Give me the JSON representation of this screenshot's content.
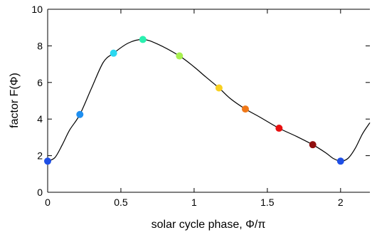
{
  "chart_data": {
    "type": "line",
    "title": "",
    "xlabel": "solar cycle phase, Φ/π",
    "ylabel": "factor F(Φ)",
    "xlim": [
      0,
      2.2
    ],
    "ylim": [
      0,
      10
    ],
    "xticks": [
      0,
      0.5,
      1,
      1.5,
      2
    ],
    "xtick_labels": [
      "0",
      "0.5",
      "1",
      "1.5",
      "2"
    ],
    "yticks": [
      0,
      2,
      4,
      6,
      8,
      10
    ],
    "ytick_labels": [
      "0",
      "2",
      "4",
      "6",
      "8",
      "10"
    ],
    "grid": false,
    "legend": "none",
    "series": [
      {
        "kind": "curve",
        "color": "#000000",
        "x": [
          0,
          0.05,
          0.1,
          0.15,
          0.22,
          0.3,
          0.38,
          0.45,
          0.55,
          0.65,
          0.75,
          0.9,
          1.0,
          1.08,
          1.17,
          1.25,
          1.35,
          1.45,
          1.58,
          1.7,
          1.81,
          1.9,
          1.95,
          2.0,
          2.05,
          2.1,
          2.15,
          2.2
        ],
        "y": [
          1.7,
          1.9,
          2.6,
          3.4,
          4.25,
          5.7,
          7.1,
          7.6,
          8.15,
          8.35,
          8.1,
          7.45,
          6.85,
          6.3,
          5.7,
          5.1,
          4.55,
          4.1,
          3.5,
          3.05,
          2.6,
          2.15,
          1.85,
          1.7,
          1.85,
          2.4,
          3.2,
          3.8
        ]
      },
      {
        "kind": "points",
        "x": [
          0,
          0.22,
          0.45,
          0.65,
          0.9,
          1.17,
          1.35,
          1.58,
          1.81,
          2.0
        ],
        "y": [
          1.7,
          4.25,
          7.6,
          8.35,
          7.45,
          5.7,
          4.55,
          3.5,
          2.6,
          1.7
        ],
        "colors": [
          "#1f4fe6",
          "#1f8ff0",
          "#2ad8f0",
          "#2af0b0",
          "#a8f050",
          "#f8d020",
          "#f07818",
          "#e81010",
          "#901010",
          "#1f4fe6"
        ]
      }
    ]
  }
}
